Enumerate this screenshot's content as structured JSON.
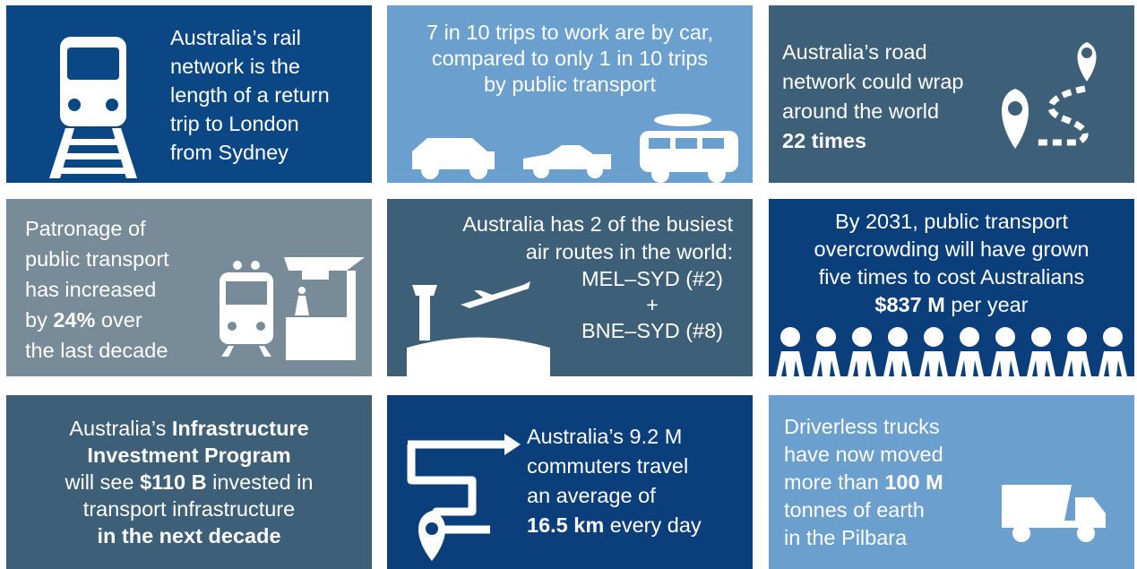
{
  "tiles": [
    {
      "lines": [
        [
          "Australia’s rail"
        ],
        [
          "network is the"
        ],
        [
          "length of a return"
        ],
        [
          "trip to London"
        ],
        [
          "from Sydney"
        ]
      ]
    },
    {
      "lines": [
        [
          "7 in 10 trips to work are by car,"
        ],
        [
          "compared to only 1 in 10 trips"
        ],
        [
          "by public transport"
        ]
      ]
    },
    {
      "lines": [
        [
          "Australia’s road"
        ],
        [
          "network could wrap"
        ],
        [
          "around the world"
        ],
        [
          {
            "bold": "22 times"
          }
        ]
      ]
    },
    {
      "lines": [
        [
          "Patronage of"
        ],
        [
          "public transport"
        ],
        [
          "has increased"
        ],
        [
          "by ",
          {
            "bold": "24%"
          },
          " over"
        ],
        [
          "the last decade"
        ]
      ]
    },
    {
      "lines": [
        [
          "Australia has 2 of the busiest"
        ],
        [
          "air routes in the world:"
        ],
        [
          "MEL–SYD (#2)"
        ],
        [
          "+"
        ],
        [
          "BNE–SYD (#8)"
        ]
      ]
    },
    {
      "lines": [
        [
          "By 2031, public transport"
        ],
        [
          "overcrowding will have grown"
        ],
        [
          "five times to cost Australians"
        ],
        [
          {
            "bold": "$837 M"
          },
          " per year"
        ]
      ]
    },
    {
      "lines": [
        [
          "Australia’s ",
          {
            "bold": "Infrastructure"
          }
        ],
        [
          {
            "bold": "Investment Program"
          }
        ],
        [
          "will see ",
          {
            "bold": "$110 B"
          },
          " invested in"
        ],
        [
          "transport infrastructure"
        ],
        [
          {
            "bold": "in the next decade"
          }
        ]
      ]
    },
    {
      "lines": [
        [
          "Australia’s 9.2 M"
        ],
        [
          "commuters travel"
        ],
        [
          "an average of"
        ],
        [
          {
            "bold": "16.5 km"
          },
          " every day"
        ]
      ]
    },
    {
      "lines": [
        [
          "Driverless trucks"
        ],
        [
          "have now moved"
        ],
        [
          "more than ",
          {
            "bold": "100 M"
          }
        ],
        [
          "tonnes of earth"
        ],
        [
          "in the Pilbara"
        ]
      ]
    }
  ]
}
